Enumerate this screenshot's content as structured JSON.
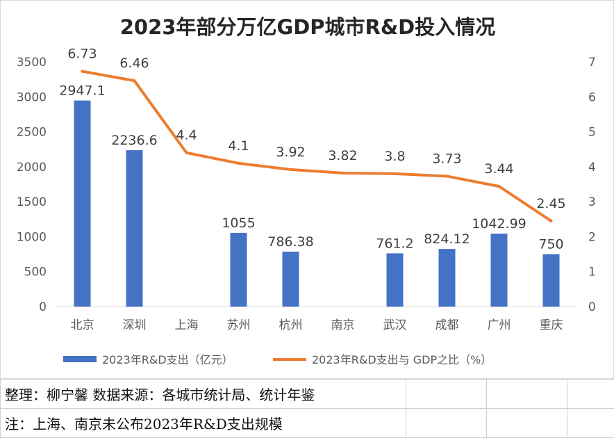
{
  "chart_data": {
    "type": "bar+line",
    "title": "2023年部分万亿GDP城市R&D投入情况",
    "categories": [
      "北京",
      "深圳",
      "上海",
      "苏州",
      "杭州",
      "南京",
      "武汉",
      "成都",
      "广州",
      "重庆"
    ],
    "series": [
      {
        "name": "2023年R&D支出（亿元）",
        "type": "bar",
        "axis": "left",
        "color": "#4472C4",
        "values": [
          2947.1,
          2236.6,
          null,
          1055,
          786.38,
          null,
          761.2,
          824.12,
          1042.99,
          750
        ],
        "labels": [
          "2947.1",
          "2236.6",
          "",
          "1055",
          "786.38",
          "",
          "761.2",
          "824.12",
          "1042.99",
          "750"
        ]
      },
      {
        "name": "2023年R&D支出与 GDP之比（%）",
        "type": "line",
        "axis": "right",
        "color": "#ED7D31",
        "values": [
          6.73,
          6.46,
          4.4,
          4.1,
          3.92,
          3.82,
          3.8,
          3.73,
          3.44,
          2.45
        ],
        "labels": [
          "6.73",
          "6.46",
          "4.4",
          "4.1",
          "3.92",
          "3.82",
          "3.8",
          "3.73",
          "3.44",
          "2.45"
        ]
      }
    ],
    "y_left": {
      "min": 0,
      "max": 3500,
      "ticks": [
        "0",
        "500",
        "1000",
        "1500",
        "2000",
        "2500",
        "3000",
        "3500"
      ]
    },
    "y_right": {
      "min": 0,
      "max": 7,
      "ticks": [
        "0",
        "1",
        "2",
        "3",
        "4",
        "5",
        "6",
        "7"
      ]
    },
    "grid": false,
    "legend_position": "bottom"
  },
  "notes": {
    "source": "整理：柳宁馨   数据来源：各城市统计局、统计年鉴",
    "remark": "注：上海、南京未公布2023年R&D支出规模"
  }
}
